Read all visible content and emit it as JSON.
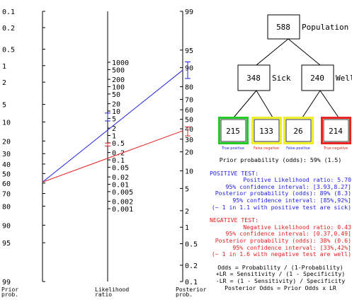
{
  "nomogram": {
    "prior_labels": [
      "0.1",
      "0.2",
      "0.5",
      "1",
      "2",
      "5",
      "10",
      "20",
      "30",
      "40",
      "50",
      "60",
      "70",
      "80",
      "90",
      "95",
      "99"
    ],
    "lr_labels": [
      "1000",
      "500",
      "200",
      "100",
      "50",
      "20",
      "10",
      "5",
      "2",
      "1",
      "0.5",
      "0.2",
      "0.1",
      "0.05",
      "0.02",
      "0.01",
      "0.005",
      "0.002",
      "0.001"
    ],
    "post_labels": [
      "99",
      "95",
      "90",
      "80",
      "70",
      "60",
      "50",
      "40",
      "30",
      "20",
      "10",
      "5",
      "2",
      "1",
      "0.5",
      "0.2",
      "0.1"
    ],
    "axis_titles": {
      "prior": [
        "Prior",
        "prob."
      ],
      "lr": [
        "Likelihood",
        "ratio"
      ],
      "post": [
        "Posterior",
        "prob."
      ]
    },
    "prior_prob_pct": 59,
    "positive_lr": 5.7,
    "positive_lr_ci": [
      3.93,
      8.27
    ],
    "negative_lr": 0.43,
    "negative_lr_ci": [
      0.37,
      0.49
    ],
    "positive_post_pct": 89,
    "positive_post_ci": [
      85,
      92
    ],
    "negative_post_pct": 38,
    "negative_post_ci": [
      33,
      42
    ],
    "colors": {
      "positive": "#2020e0",
      "negative": "#e02020"
    }
  },
  "tree": {
    "population": {
      "count": "588",
      "label": "Population"
    },
    "sick": {
      "count": "348",
      "label": "Sick"
    },
    "well": {
      "count": "240",
      "label": "Well"
    },
    "leaves": [
      {
        "count": "215",
        "caption": "True positive",
        "border": "#22cc22",
        "caption_color": "#2020e0"
      },
      {
        "count": "133",
        "caption": "False negative",
        "border": "#eeee22",
        "caption_color": "#e02020"
      },
      {
        "count": "26",
        "caption": "False positive",
        "border": "#eeee22",
        "caption_color": "#2020e0"
      },
      {
        "count": "214",
        "caption": "True negative",
        "border": "#ee2222",
        "caption_color": "#e02020"
      }
    ]
  },
  "summary": {
    "prior": "Prior probability (odds): 59% (1.5)",
    "pos_heading": "POSITIVE TEST:",
    "pos_lines": [
      "Positive Likelihood ratio: 5.70",
      "95% confidence interval: [3.93,8.27]",
      "Posterior probability (odds): 89% (8.3)",
      "95% confidence interval: [85%,92%]",
      "(~ 1 in 1.1 with positive test are sick)"
    ],
    "neg_heading": "NEGATIVE TEST:",
    "neg_lines": [
      "Negative Likelihood ratio: 0.43",
      "95% confidence interval: [0.37,0.49]",
      "Posterior probability (odds): 38% (0.6)",
      "95% confidence interval: [33%,42%]",
      "(~ 1 in 1.6 with negative test are well)"
    ],
    "formulas": [
      "Odds = Probability / (1-Probability)",
      "+LR = Sensitivity / (1 - Specificity)",
      "-LR = (1 - Sensitivity) / Specificity",
      "Posterior Odds = Prior Odds x LR"
    ]
  }
}
